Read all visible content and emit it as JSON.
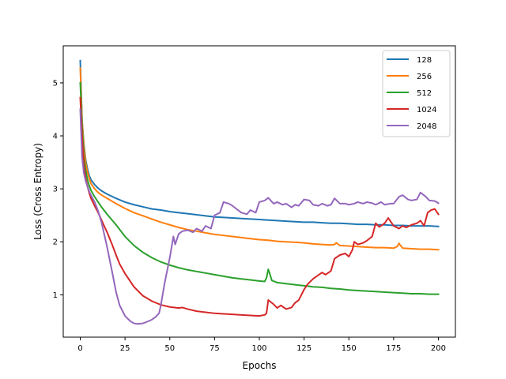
{
  "chart_data": {
    "type": "line",
    "title": "",
    "xlabel": "Epochs",
    "ylabel": "Loss (Cross Entropy)",
    "xlim": [
      -9.5,
      209.5
    ],
    "ylim": [
      0.2,
      5.7
    ],
    "xticks": [
      0,
      25,
      50,
      75,
      100,
      125,
      150,
      175,
      200
    ],
    "yticks": [
      1,
      2,
      3,
      4,
      5
    ],
    "grid": false,
    "legend": "top-right",
    "series": [
      {
        "name": "128",
        "color": "#1f77b4",
        "x": [
          0,
          1,
          2,
          3,
          4,
          5,
          6,
          8,
          10,
          12,
          15,
          20,
          25,
          30,
          35,
          40,
          45,
          50,
          55,
          60,
          65,
          70,
          75,
          80,
          85,
          90,
          95,
          100,
          105,
          110,
          115,
          120,
          125,
          130,
          135,
          140,
          145,
          150,
          155,
          160,
          165,
          170,
          175,
          180,
          185,
          190,
          195,
          200
        ],
        "y": [
          5.42,
          4.3,
          3.85,
          3.55,
          3.38,
          3.25,
          3.17,
          3.08,
          3.01,
          2.96,
          2.9,
          2.82,
          2.75,
          2.7,
          2.66,
          2.62,
          2.6,
          2.57,
          2.55,
          2.53,
          2.51,
          2.49,
          2.47,
          2.46,
          2.45,
          2.44,
          2.43,
          2.42,
          2.41,
          2.4,
          2.39,
          2.38,
          2.37,
          2.37,
          2.36,
          2.35,
          2.35,
          2.34,
          2.33,
          2.33,
          2.32,
          2.32,
          2.31,
          2.31,
          2.3,
          2.3,
          2.3,
          2.29
        ]
      },
      {
        "name": "256",
        "color": "#ff7f0e",
        "x": [
          0,
          1,
          2,
          3,
          4,
          5,
          6,
          8,
          10,
          12,
          15,
          20,
          25,
          30,
          35,
          40,
          45,
          50,
          55,
          60,
          65,
          70,
          75,
          80,
          85,
          90,
          95,
          100,
          105,
          110,
          115,
          120,
          125,
          130,
          135,
          140,
          142,
          143,
          145,
          150,
          155,
          160,
          165,
          170,
          175,
          177,
          178,
          180,
          185,
          190,
          195,
          200
        ],
        "y": [
          5.28,
          4.3,
          3.8,
          3.5,
          3.32,
          3.2,
          3.1,
          3.0,
          2.93,
          2.88,
          2.82,
          2.72,
          2.63,
          2.55,
          2.49,
          2.43,
          2.37,
          2.32,
          2.27,
          2.23,
          2.2,
          2.17,
          2.14,
          2.12,
          2.1,
          2.08,
          2.06,
          2.04,
          2.03,
          2.01,
          2.0,
          1.99,
          1.98,
          1.96,
          1.95,
          1.94,
          1.95,
          1.98,
          1.93,
          1.92,
          1.91,
          1.9,
          1.89,
          1.89,
          1.88,
          1.91,
          1.97,
          1.88,
          1.87,
          1.86,
          1.86,
          1.85
        ]
      },
      {
        "name": "512",
        "color": "#2ca02c",
        "x": [
          0,
          1,
          2,
          3,
          4,
          5,
          6,
          8,
          10,
          12,
          15,
          20,
          25,
          30,
          35,
          40,
          45,
          50,
          55,
          60,
          65,
          70,
          75,
          80,
          85,
          90,
          95,
          100,
          103,
          104,
          105,
          106,
          107,
          110,
          115,
          120,
          125,
          130,
          135,
          140,
          145,
          150,
          155,
          160,
          165,
          170,
          175,
          180,
          185,
          190,
          195,
          200
        ],
        "y": [
          5.0,
          4.2,
          3.6,
          3.35,
          3.18,
          3.06,
          2.97,
          2.85,
          2.75,
          2.65,
          2.52,
          2.32,
          2.1,
          1.93,
          1.8,
          1.7,
          1.62,
          1.56,
          1.51,
          1.47,
          1.44,
          1.41,
          1.38,
          1.35,
          1.32,
          1.3,
          1.28,
          1.26,
          1.25,
          1.32,
          1.48,
          1.38,
          1.27,
          1.23,
          1.21,
          1.19,
          1.17,
          1.15,
          1.14,
          1.12,
          1.11,
          1.09,
          1.08,
          1.07,
          1.06,
          1.05,
          1.04,
          1.03,
          1.02,
          1.02,
          1.01,
          1.01
        ]
      },
      {
        "name": "1024",
        "color": "#d62728",
        "x": [
          0,
          1,
          2,
          3,
          4,
          5,
          6,
          8,
          10,
          12,
          15,
          18,
          20,
          22,
          25,
          28,
          30,
          35,
          40,
          45,
          50,
          55,
          57,
          60,
          65,
          70,
          75,
          80,
          85,
          90,
          95,
          100,
          103,
          104,
          105,
          108,
          110,
          112,
          115,
          118,
          120,
          122,
          125,
          127,
          130,
          135,
          137,
          140,
          142,
          145,
          148,
          150,
          152,
          153,
          155,
          158,
          160,
          163,
          165,
          167,
          170,
          172,
          175,
          178,
          180,
          182,
          185,
          188,
          190,
          192,
          194,
          196,
          198,
          200
        ],
        "y": [
          4.72,
          4.0,
          3.45,
          3.2,
          3.05,
          2.92,
          2.82,
          2.68,
          2.55,
          2.4,
          2.18,
          1.93,
          1.75,
          1.58,
          1.4,
          1.25,
          1.15,
          0.98,
          0.88,
          0.81,
          0.77,
          0.75,
          0.76,
          0.73,
          0.69,
          0.67,
          0.65,
          0.64,
          0.63,
          0.62,
          0.61,
          0.6,
          0.62,
          0.65,
          0.9,
          0.82,
          0.75,
          0.8,
          0.73,
          0.76,
          0.85,
          0.9,
          1.1,
          1.2,
          1.3,
          1.42,
          1.38,
          1.45,
          1.68,
          1.75,
          1.78,
          1.72,
          1.85,
          2.0,
          1.95,
          1.98,
          2.02,
          2.1,
          2.35,
          2.28,
          2.35,
          2.45,
          2.3,
          2.25,
          2.3,
          2.27,
          2.32,
          2.35,
          2.4,
          2.3,
          2.55,
          2.6,
          2.62,
          2.52
        ]
      },
      {
        "name": "2048",
        "color": "#9467bd",
        "x": [
          0,
          1,
          2,
          3,
          4,
          5,
          6,
          8,
          10,
          12,
          15,
          18,
          20,
          22,
          25,
          28,
          30,
          32,
          35,
          38,
          40,
          42,
          44,
          45,
          47,
          50,
          52,
          53,
          55,
          57,
          60,
          63,
          65,
          68,
          70,
          73,
          75,
          78,
          80,
          83,
          85,
          88,
          90,
          93,
          95,
          98,
          100,
          103,
          105,
          108,
          110,
          113,
          115,
          118,
          120,
          122,
          125,
          128,
          130,
          133,
          135,
          138,
          140,
          142,
          145,
          148,
          150,
          153,
          155,
          158,
          160,
          163,
          165,
          168,
          170,
          173,
          175,
          178,
          180,
          183,
          185,
          188,
          190,
          193,
          195,
          198,
          200
        ],
        "y": [
          4.5,
          3.6,
          3.3,
          3.15,
          3.05,
          2.95,
          2.88,
          2.75,
          2.58,
          2.35,
          1.9,
          1.4,
          1.05,
          0.8,
          0.6,
          0.5,
          0.46,
          0.45,
          0.46,
          0.5,
          0.53,
          0.58,
          0.65,
          0.8,
          1.2,
          1.7,
          2.1,
          1.95,
          2.15,
          2.2,
          2.22,
          2.18,
          2.25,
          2.2,
          2.3,
          2.25,
          2.5,
          2.55,
          2.75,
          2.72,
          2.68,
          2.6,
          2.55,
          2.52,
          2.6,
          2.55,
          2.75,
          2.78,
          2.83,
          2.72,
          2.75,
          2.7,
          2.72,
          2.65,
          2.7,
          2.68,
          2.8,
          2.78,
          2.7,
          2.68,
          2.72,
          2.68,
          2.7,
          2.82,
          2.72,
          2.72,
          2.7,
          2.72,
          2.75,
          2.72,
          2.75,
          2.73,
          2.7,
          2.75,
          2.7,
          2.72,
          2.72,
          2.85,
          2.88,
          2.8,
          2.78,
          2.8,
          2.93,
          2.85,
          2.78,
          2.77,
          2.73
        ]
      }
    ]
  }
}
